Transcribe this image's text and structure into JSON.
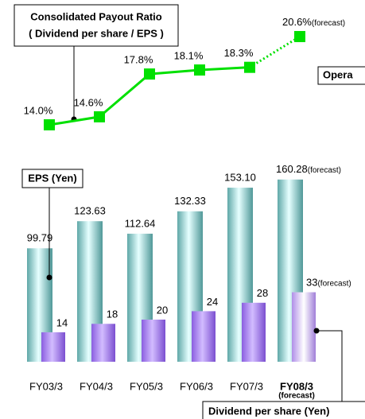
{
  "chart_data": [
    {
      "type": "line",
      "title": "Consolidated Payout Ratio",
      "subtitle": "( Dividend per share / EPS )",
      "values": [
        14.0,
        14.6,
        17.8,
        18.1,
        18.3,
        20.6
      ],
      "value_labels": [
        "14.0%",
        "14.6%",
        "17.8%",
        "18.1%",
        "18.3%",
        "20.6%"
      ],
      "forecast_label": "(forecast)",
      "annotation": "Opera",
      "color": "#00e000"
    },
    {
      "type": "bar",
      "categories": [
        "FY03/3",
        "FY04/3",
        "FY05/3",
        "FY06/3",
        "FY07/3",
        "FY08/3"
      ],
      "category_note": "(forecast)",
      "forecast_label": "(forecast)",
      "series": [
        {
          "name": "EPS (Yen)",
          "color": "#7fcfcf",
          "values": [
            99.79,
            123.63,
            112.64,
            132.33,
            153.1,
            160.28
          ],
          "value_labels": [
            "99.79",
            "123.63",
            "112.64",
            "132.33",
            "153.10",
            "160.28"
          ]
        },
        {
          "name": "Dividend per share  (Yen)",
          "color": "#a77ff0",
          "values": [
            14,
            18,
            20,
            24,
            28,
            33
          ]
        }
      ]
    }
  ]
}
